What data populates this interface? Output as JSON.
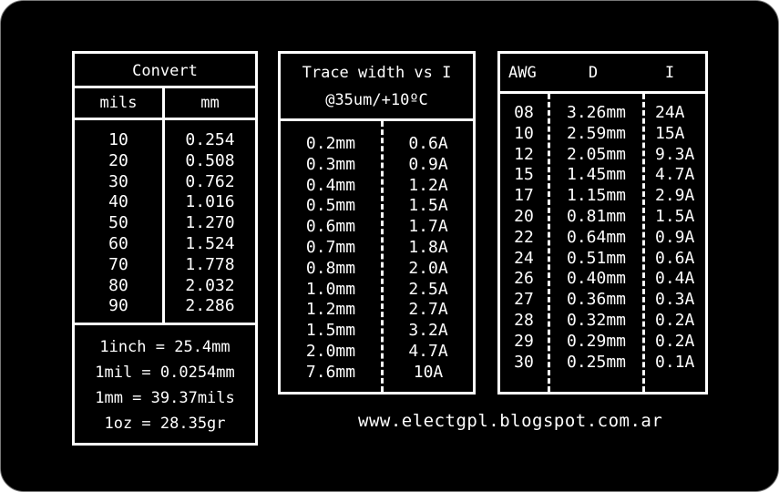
{
  "convert": {
    "title": "Convert",
    "col_mils": "mils",
    "col_mm": "mm",
    "mils": [
      "10",
      "20",
      "30",
      "40",
      "50",
      "60",
      "70",
      "80",
      "90"
    ],
    "mm": [
      "0.254",
      "0.508",
      "0.762",
      "1.016",
      "1.270",
      "1.524",
      "1.778",
      "2.032",
      "2.286"
    ],
    "equivalences": [
      "1inch = 25.4mm",
      "1mil = 0.0254mm",
      "1mm = 39.37mils",
      "1oz = 28.35gr"
    ]
  },
  "trace": {
    "title_line1": "Trace width vs I",
    "title_line2": "@35um/+10ºC",
    "width": [
      "0.2mm",
      "0.3mm",
      "0.4mm",
      "0.5mm",
      "0.6mm",
      "0.7mm",
      "0.8mm",
      "1.0mm",
      "1.2mm",
      "1.5mm",
      "2.0mm",
      "7.6mm"
    ],
    "current": [
      "0.6A",
      "0.9A",
      "1.2A",
      "1.5A",
      "1.7A",
      "1.8A",
      "2.0A",
      "2.5A",
      "2.7A",
      "3.2A",
      "4.7A",
      "10A"
    ]
  },
  "awg": {
    "col_awg": "AWG",
    "col_d": "D",
    "col_i": "I",
    "gauge": [
      "08",
      "10",
      "12",
      "15",
      "17",
      "20",
      "22",
      "24",
      "26",
      "27",
      "28",
      "29",
      "30"
    ],
    "diameter": [
      "3.26mm",
      "2.59mm",
      "2.05mm",
      "1.45mm",
      "1.15mm",
      "0.81mm",
      "0.64mm",
      "0.51mm",
      "0.40mm",
      "0.36mm",
      "0.32mm",
      "0.29mm",
      "0.25mm"
    ],
    "current": [
      "24A",
      "15A",
      "9.3A",
      "4.7A",
      "2.9A",
      "1.5A",
      "0.9A",
      "0.6A",
      "0.4A",
      "0.3A",
      "0.2A",
      "0.2A",
      "0.1A"
    ]
  },
  "footer": {
    "url": "www.electgpl.blogspot.com.ar"
  }
}
